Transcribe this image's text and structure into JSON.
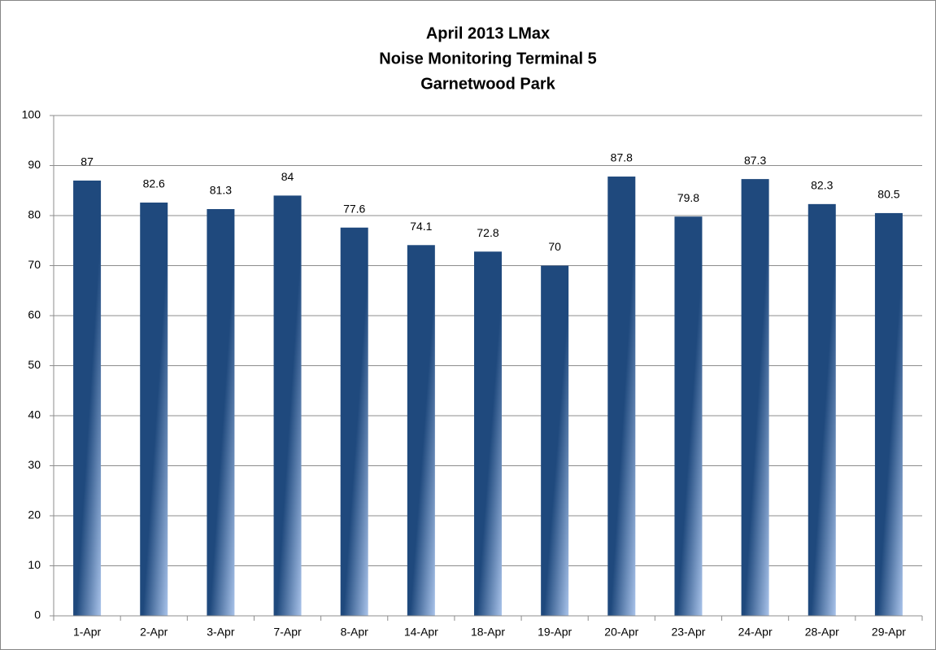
{
  "chart_data": {
    "type": "bar",
    "title": [
      "April 2013 LMax",
      "Noise Monitoring Terminal 5",
      "Garnetwood Park"
    ],
    "categories": [
      "1-Apr",
      "2-Apr",
      "3-Apr",
      "7-Apr",
      "8-Apr",
      "14-Apr",
      "18-Apr",
      "19-Apr",
      "20-Apr",
      "23-Apr",
      "24-Apr",
      "28-Apr",
      "29-Apr"
    ],
    "values": [
      87,
      82.6,
      81.3,
      84,
      77.6,
      74.1,
      72.8,
      70,
      87.8,
      79.8,
      87.3,
      82.3,
      80.5
    ],
    "color": "#1f497d",
    "ylim": [
      0,
      100
    ],
    "yticks": [
      0,
      10,
      20,
      30,
      40,
      50,
      60,
      70,
      80,
      90,
      100
    ],
    "grid": true
  }
}
